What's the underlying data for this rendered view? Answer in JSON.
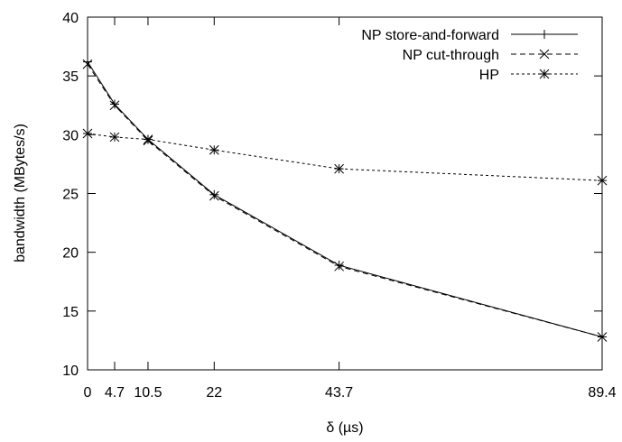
{
  "chart_data": {
    "type": "line",
    "title": "",
    "xlabel": "δ (µs)",
    "ylabel": "bandwidth (MBytes/s)",
    "x": [
      0,
      4.7,
      10.5,
      22,
      43.7,
      89.4
    ],
    "x_tick_labels": [
      "0",
      "4.7",
      "10.5",
      "22",
      "43.7",
      "89.4"
    ],
    "xlim": [
      0,
      89.4
    ],
    "ylim": [
      10,
      40
    ],
    "y_ticks": [
      10,
      15,
      20,
      25,
      30,
      35,
      40
    ],
    "grid": false,
    "legend_position": "top-right",
    "series": [
      {
        "name": "NP store-and-forward",
        "values": [
          36.2,
          32.6,
          29.6,
          24.9,
          18.9,
          12.8
        ],
        "line_style": "solid",
        "marker": "plus"
      },
      {
        "name": "NP cut-through",
        "values": [
          36.0,
          32.5,
          29.5,
          24.8,
          18.8,
          12.8
        ],
        "line_style": "dashed",
        "marker": "cross"
      },
      {
        "name": "HP",
        "values": [
          30.1,
          29.8,
          29.6,
          28.7,
          27.1,
          26.1
        ],
        "line_style": "dotted",
        "marker": "star"
      }
    ]
  }
}
